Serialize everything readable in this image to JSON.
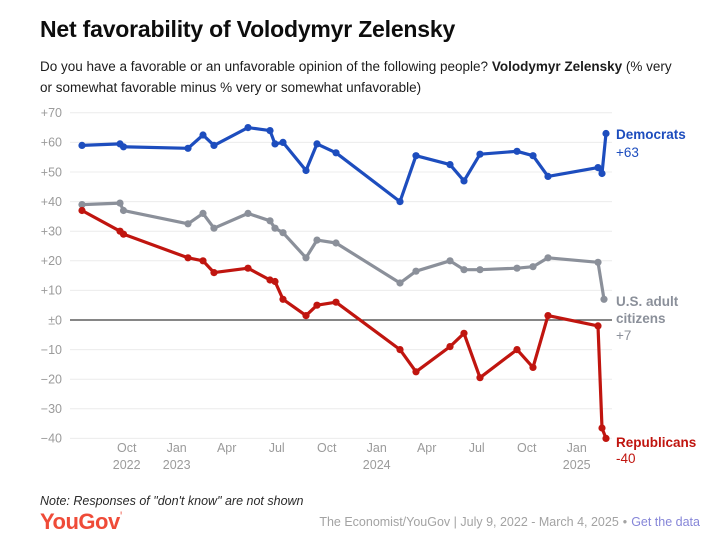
{
  "header": {
    "title": "Net favorability of Volodymyr Zelensky",
    "subtitle": {
      "lead": "Do you have a favorable or an unfavorable opinion of the following people? ",
      "bold": "Volodymyr Zelensky",
      "tail_line1": " (% very",
      "line2": "or somewhat favorable minus % very or somewhat unfavorable)"
    }
  },
  "chart_data": {
    "type": "line",
    "title": "Net favorability of Volodymyr Zelensky",
    "x_unit": "months since July 2022",
    "x_range_label": "July 9, 2022 - March 4, 2025",
    "grid": true,
    "legend_position": "right-end-labels",
    "x_axis": {
      "ticks": [
        {
          "m": 3,
          "line1": "Oct",
          "line2": "2022"
        },
        {
          "m": 6,
          "line1": "Jan",
          "line2": "2023"
        },
        {
          "m": 9,
          "line1": "Apr",
          "line2": ""
        },
        {
          "m": 12,
          "line1": "Jul",
          "line2": ""
        },
        {
          "m": 15,
          "line1": "Oct",
          "line2": ""
        },
        {
          "m": 18,
          "line1": "Jan",
          "line2": "2024"
        },
        {
          "m": 21,
          "line1": "Apr",
          "line2": ""
        },
        {
          "m": 24,
          "line1": "Jul",
          "line2": ""
        },
        {
          "m": 27,
          "line1": "Oct",
          "line2": ""
        },
        {
          "m": 30,
          "line1": "Jan",
          "line2": "2025"
        }
      ]
    },
    "y_axis": {
      "range": [
        -40,
        70
      ],
      "zero_line": true,
      "ticks": [
        {
          "v": 70,
          "label": "+70"
        },
        {
          "v": 60,
          "label": "+60"
        },
        {
          "v": 50,
          "label": "+50"
        },
        {
          "v": 40,
          "label": "+40"
        },
        {
          "v": 30,
          "label": "+30"
        },
        {
          "v": 20,
          "label": "+20"
        },
        {
          "v": 10,
          "label": "+10"
        },
        {
          "v": 0,
          "label": "±0"
        },
        {
          "v": -10,
          "label": "−10"
        },
        {
          "v": -20,
          "label": "−20"
        },
        {
          "v": -30,
          "label": "−30"
        },
        {
          "v": -40,
          "label": "−40"
        }
      ]
    },
    "series": [
      {
        "id": "democrats",
        "name": "Democrats",
        "color": "#1d4dbe",
        "end_label_lines": [
          "Democrats"
        ],
        "end_value_label": "+63",
        "points": [
          [
            0.32,
            59
          ],
          [
            2.6,
            59.5
          ],
          [
            2.81,
            58.5
          ],
          [
            6.68,
            58
          ],
          [
            7.58,
            62.5
          ],
          [
            8.24,
            59
          ],
          [
            10.28,
            65
          ],
          [
            11.6,
            64
          ],
          [
            11.9,
            59.5
          ],
          [
            12.38,
            60
          ],
          [
            13.76,
            50.5
          ],
          [
            14.42,
            59.5
          ],
          [
            15.56,
            56.5
          ],
          [
            19.4,
            40
          ],
          [
            20.36,
            55.5
          ],
          [
            22.4,
            52.5
          ],
          [
            23.24,
            47
          ],
          [
            24.2,
            56
          ],
          [
            26.42,
            57
          ],
          [
            27.38,
            55.5
          ],
          [
            28.28,
            48.5
          ],
          [
            31.28,
            51.5
          ],
          [
            31.52,
            49.5
          ],
          [
            31.76,
            63
          ]
        ]
      },
      {
        "id": "us-adult-citizens",
        "name": "U.S. adult citizens",
        "color": "#8b909a",
        "end_label_lines": [
          "U.S. adult",
          "citizens"
        ],
        "end_value_label": "+7",
        "points": [
          [
            0.32,
            39
          ],
          [
            2.6,
            39.5
          ],
          [
            2.81,
            37
          ],
          [
            6.68,
            32.5
          ],
          [
            7.58,
            36
          ],
          [
            8.24,
            31
          ],
          [
            10.28,
            36
          ],
          [
            11.6,
            33.5
          ],
          [
            11.9,
            31
          ],
          [
            12.38,
            29.5
          ],
          [
            13.76,
            21
          ],
          [
            14.42,
            27
          ],
          [
            15.56,
            26
          ],
          [
            19.4,
            12.5
          ],
          [
            20.36,
            16.5
          ],
          [
            22.4,
            20
          ],
          [
            23.24,
            17
          ],
          [
            24.2,
            17
          ],
          [
            26.42,
            17.5
          ],
          [
            27.38,
            18
          ],
          [
            28.28,
            21
          ],
          [
            31.28,
            19.5
          ],
          [
            31.64,
            7
          ]
        ]
      },
      {
        "id": "republicans",
        "name": "Republicans",
        "color": "#c0150f",
        "end_label_lines": [
          "Republicans"
        ],
        "end_value_label": "-40",
        "points": [
          [
            0.32,
            37
          ],
          [
            2.6,
            30
          ],
          [
            2.81,
            29
          ],
          [
            6.68,
            21
          ],
          [
            7.58,
            20
          ],
          [
            8.24,
            16
          ],
          [
            10.28,
            17.5
          ],
          [
            11.6,
            13.5
          ],
          [
            11.9,
            13
          ],
          [
            12.38,
            7
          ],
          [
            13.76,
            1.5
          ],
          [
            14.42,
            5
          ],
          [
            15.56,
            6
          ],
          [
            19.4,
            -10
          ],
          [
            20.36,
            -17.5
          ],
          [
            22.4,
            -9
          ],
          [
            23.24,
            -4.5
          ],
          [
            24.2,
            -19.5
          ],
          [
            26.42,
            -10
          ],
          [
            27.38,
            -16
          ],
          [
            28.28,
            1.5
          ],
          [
            31.28,
            -2
          ],
          [
            31.52,
            -36.5
          ],
          [
            31.76,
            -40
          ]
        ]
      }
    ]
  },
  "note": "Note: Responses of \"don't know\" are not shown",
  "footer": {
    "logo": "YouGov",
    "logo_mark": "'",
    "source": "The Economist/YouGov | July 9, 2022 - March 4, 2025",
    "separator": "•",
    "link": "Get the data"
  }
}
